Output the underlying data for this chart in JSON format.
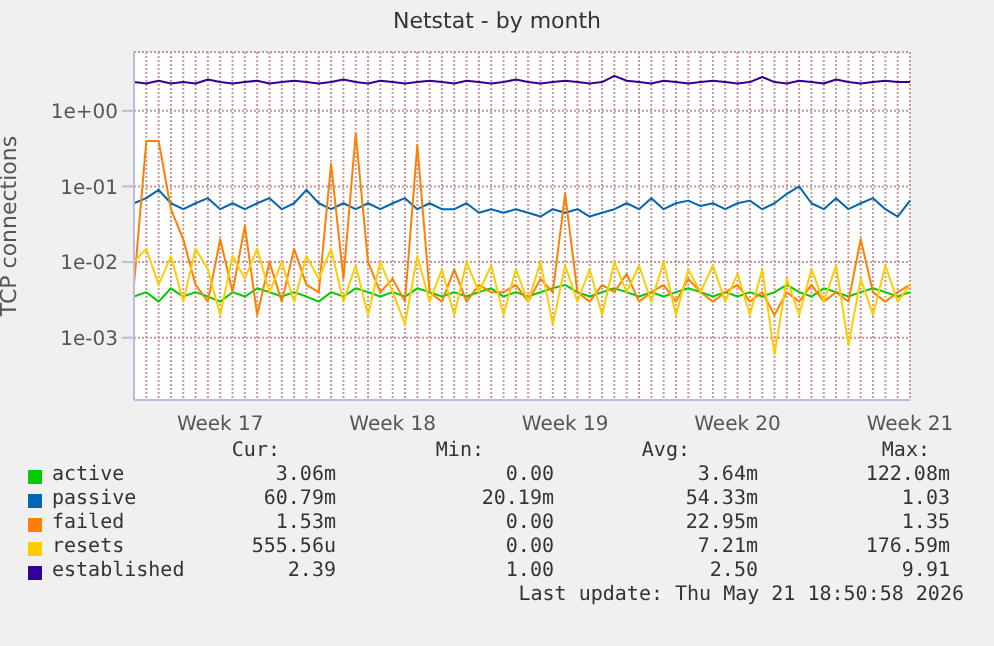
{
  "chart_data": {
    "type": "line",
    "title": "Netstat - by month",
    "ylabel": "TCP connections",
    "log": true,
    "grid": true,
    "legend": "bottom",
    "marker": "none",
    "line_style": "solid",
    "categories": [
      null,
      null,
      null,
      null,
      null,
      null,
      null,
      "Week 17",
      null,
      null,
      null,
      null,
      null,
      null,
      null,
      null,
      null,
      null,
      null,
      null,
      null,
      "Week 18",
      null,
      null,
      null,
      null,
      null,
      null,
      null,
      null,
      null,
      null,
      null,
      null,
      null,
      "Week 19",
      null,
      null,
      null,
      null,
      null,
      null,
      null,
      null,
      null,
      null,
      null,
      null,
      null,
      "Week 20",
      null,
      null,
      null,
      null,
      null,
      null,
      null,
      null,
      null,
      null,
      null,
      null,
      null,
      "Week 21"
    ],
    "ylim": [
      0.00015,
      6
    ],
    "yticks": [
      {
        "value": 0.001,
        "label": "1e-03"
      },
      {
        "value": 0.01,
        "label": "1e-02"
      },
      {
        "value": 0.1,
        "label": "1e-01"
      },
      {
        "value": 1,
        "label": "1e+00"
      }
    ],
    "series": [
      {
        "name": "active",
        "color": "#00cc00",
        "values": [
          0.0035,
          0.004,
          0.003,
          0.0045,
          0.0035,
          0.004,
          0.0035,
          0.003,
          0.004,
          0.0035,
          0.0045,
          0.004,
          0.0035,
          0.004,
          0.0035,
          0.003,
          0.004,
          0.0035,
          0.0045,
          0.004,
          0.0035,
          0.004,
          0.0035,
          0.0045,
          0.004,
          0.0035,
          0.004,
          0.0035,
          0.004,
          0.0045,
          0.0035,
          0.004,
          0.0035,
          0.004,
          0.0045,
          0.005,
          0.004,
          0.0035,
          0.004,
          0.0045,
          0.004,
          0.0035,
          0.004,
          0.0035,
          0.004,
          0.0045,
          0.004,
          0.0035,
          0.004,
          0.0035,
          0.004,
          0.0035,
          0.004,
          0.005,
          0.004,
          0.0035,
          0.0045,
          0.004,
          0.0035,
          0.004,
          0.0045,
          0.004,
          0.0035,
          0.004
        ]
      },
      {
        "name": "passive",
        "color": "#0066b3",
        "values": [
          0.06,
          0.07,
          0.09,
          0.06,
          0.05,
          0.06,
          0.07,
          0.05,
          0.06,
          0.05,
          0.06,
          0.07,
          0.05,
          0.06,
          0.09,
          0.06,
          0.05,
          0.06,
          0.05,
          0.06,
          0.05,
          0.06,
          0.07,
          0.05,
          0.06,
          0.05,
          0.05,
          0.06,
          0.045,
          0.05,
          0.045,
          0.05,
          0.045,
          0.04,
          0.05,
          0.045,
          0.05,
          0.04,
          0.045,
          0.05,
          0.06,
          0.05,
          0.07,
          0.05,
          0.06,
          0.065,
          0.055,
          0.06,
          0.05,
          0.06,
          0.065,
          0.05,
          0.06,
          0.08,
          0.1,
          0.06,
          0.05,
          0.07,
          0.05,
          0.06,
          0.07,
          0.05,
          0.04,
          0.065
        ]
      },
      {
        "name": "failed",
        "color": "#ff8000",
        "values": [
          0.005,
          0.4,
          0.4,
          0.05,
          0.02,
          0.005,
          0.003,
          0.02,
          0.004,
          0.03,
          0.002,
          0.01,
          0.003,
          0.015,
          0.005,
          0.004,
          0.2,
          0.006,
          0.5,
          0.01,
          0.004,
          0.006,
          0.003,
          0.35,
          0.004,
          0.003,
          0.008,
          0.003,
          0.005,
          0.004,
          0.004,
          0.005,
          0.003,
          0.006,
          0.004,
          0.08,
          0.004,
          0.003,
          0.005,
          0.004,
          0.007,
          0.003,
          0.004,
          0.005,
          0.003,
          0.006,
          0.004,
          0.003,
          0.004,
          0.005,
          0.003,
          0.004,
          0.002,
          0.004,
          0.003,
          0.005,
          0.003,
          0.004,
          0.003,
          0.02,
          0.004,
          0.003,
          0.004,
          0.005
        ]
      },
      {
        "name": "resets",
        "color": "#ffcc00",
        "values": [
          0.01,
          0.015,
          0.005,
          0.012,
          0.003,
          0.015,
          0.008,
          0.002,
          0.012,
          0.006,
          0.015,
          0.004,
          0.01,
          0.003,
          0.012,
          0.006,
          0.015,
          0.003,
          0.009,
          0.002,
          0.01,
          0.004,
          0.0015,
          0.012,
          0.003,
          0.008,
          0.002,
          0.01,
          0.004,
          0.009,
          0.002,
          0.008,
          0.003,
          0.01,
          0.0015,
          0.009,
          0.003,
          0.008,
          0.002,
          0.01,
          0.004,
          0.009,
          0.003,
          0.01,
          0.002,
          0.008,
          0.004,
          0.009,
          0.003,
          0.007,
          0.002,
          0.008,
          0.0006,
          0.006,
          0.002,
          0.008,
          0.003,
          0.009,
          0.0008,
          0.006,
          0.002,
          0.009,
          0.003,
          0.005
        ]
      },
      {
        "name": "established",
        "color": "#330099",
        "values": [
          2.4,
          2.3,
          2.5,
          2.3,
          2.4,
          2.3,
          2.6,
          2.4,
          2.3,
          2.4,
          2.5,
          2.3,
          2.4,
          2.5,
          2.4,
          2.3,
          2.4,
          2.6,
          2.4,
          2.3,
          2.5,
          2.4,
          2.3,
          2.4,
          2.5,
          2.4,
          2.3,
          2.5,
          2.4,
          2.3,
          2.4,
          2.6,
          2.4,
          2.3,
          2.4,
          2.5,
          2.4,
          2.3,
          2.4,
          2.9,
          2.5,
          2.4,
          2.3,
          2.5,
          2.4,
          2.3,
          2.4,
          2.5,
          2.4,
          2.3,
          2.4,
          2.8,
          2.4,
          2.3,
          2.5,
          2.4,
          2.3,
          2.6,
          2.4,
          2.3,
          2.4,
          2.5,
          2.4,
          2.4
        ]
      }
    ],
    "annotations": [
      "Cur:",
      "Min:",
      "Avg:",
      "Max:",
      "3.06m",
      "0.00",
      "3.64m",
      "122.08m",
      "60.79m",
      "20.19m",
      "54.33m",
      "1.03",
      "1.53m",
      "0.00",
      "22.95m",
      "1.35",
      "555.56u",
      "0.00",
      "7.21m",
      "176.59m",
      "2.39",
      "1.00",
      "2.50",
      "9.91",
      "Last update: Thu May 21 18:50:58 2026"
    ]
  }
}
